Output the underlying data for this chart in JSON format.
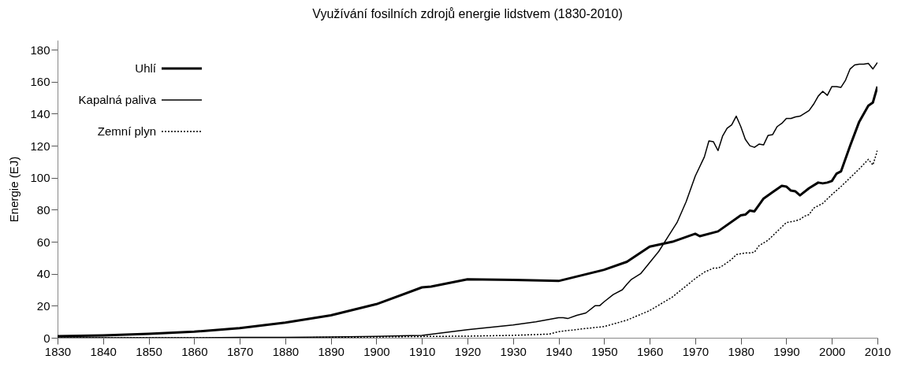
{
  "chart_data": {
    "type": "line",
    "title": "Využívání fosilních zdrojů energie lidstvem (1830-2010)",
    "ylabel": "Energie (EJ)",
    "xlim": [
      1830,
      2010
    ],
    "xticks": [
      1830,
      1840,
      1850,
      1860,
      1870,
      1880,
      1890,
      1900,
      1910,
      1920,
      1930,
      1940,
      1950,
      1960,
      1970,
      1980,
      1990,
      2000,
      2010
    ],
    "ylim": [
      0,
      186
    ],
    "yticks": [
      0,
      20,
      40,
      60,
      80,
      100,
      120,
      140,
      160,
      180
    ],
    "grid": false,
    "legend": "top left",
    "marker": "none",
    "series": [
      {
        "name": "Uhlí",
        "color": "#000000",
        "line_style": "solid",
        "x": [
          1830,
          1840,
          1850,
          1860,
          1870,
          1880,
          1890,
          1900,
          1910,
          1912,
          1920,
          1930,
          1940,
          1950,
          1955,
          1960,
          1965,
          1970,
          1971,
          1975,
          1980,
          1981,
          1982,
          1983,
          1985,
          1987,
          1989,
          1990,
          1991,
          1992,
          1993,
          1995,
          1997,
          1998,
          1999,
          2000,
          2001,
          2002,
          2004,
          2006,
          2008,
          2009,
          2010
        ],
        "values": [
          1,
          1.5,
          2.5,
          3.8,
          6,
          9.5,
          14,
          21,
          31.5,
          32,
          36.5,
          36.2,
          35.5,
          42.5,
          47.5,
          57,
          60,
          65,
          63.5,
          66.5,
          76.5,
          77,
          79.5,
          79,
          87,
          91,
          95,
          94.5,
          92,
          91.5,
          89,
          93.5,
          97,
          96.5,
          97,
          98,
          102.5,
          104,
          120,
          135,
          145,
          147,
          157
        ]
      },
      {
        "name": "Kapalná paliva",
        "color": "#000000",
        "line_style": "solid",
        "x": [
          1830,
          1860,
          1870,
          1880,
          1890,
          1900,
          1910,
          1920,
          1930,
          1935,
          1940,
          1941,
          1942,
          1944,
          1946,
          1948,
          1949,
          1950,
          1952,
          1954,
          1955,
          1956,
          1958,
          1960,
          1962,
          1964,
          1966,
          1968,
          1970,
          1972,
          1973,
          1974,
          1975,
          1976,
          1977,
          1978,
          1979,
          1980,
          1981,
          1982,
          1983,
          1984,
          1985,
          1986,
          1987,
          1988,
          1989,
          1990,
          1991,
          1992,
          1993,
          1995,
          1996,
          1997,
          1998,
          1999,
          2000,
          2001,
          2002,
          2003,
          2004,
          2005,
          2006,
          2007,
          2008,
          2009,
          2010
        ],
        "values": [
          0,
          0,
          0.2,
          0.3,
          0.5,
          0.8,
          1.5,
          5,
          8,
          10,
          12.5,
          12.5,
          12,
          14,
          15.5,
          20,
          20,
          22.5,
          27,
          30,
          33.5,
          36.5,
          40,
          47,
          54,
          63,
          72,
          85,
          101,
          113,
          123,
          122.5,
          117,
          126,
          131,
          133,
          138.5,
          132,
          124,
          120,
          119,
          121,
          120.5,
          126.5,
          127,
          132,
          134,
          137,
          137,
          138,
          138.5,
          142,
          146,
          151,
          154,
          151.5,
          157,
          157,
          156.5,
          161,
          168,
          170.5,
          171,
          171,
          171.5,
          168,
          172
        ]
      },
      {
        "name": "Zemní plyn",
        "color": "#000000",
        "line_style": "dotted",
        "x": [
          1830,
          1880,
          1890,
          1900,
          1910,
          1920,
          1930,
          1938,
          1940,
          1945,
          1950,
          1955,
          1960,
          1965,
          1970,
          1972,
          1974,
          1975,
          1976,
          1978,
          1979,
          1980,
          1981,
          1982,
          1983,
          1984,
          1986,
          1988,
          1990,
          1992,
          1993,
          1994,
          1995,
          1996,
          1998,
          2000,
          2002,
          2004,
          2006,
          2008,
          2009,
          2010
        ],
        "values": [
          0,
          0,
          0.3,
          0.5,
          0.8,
          1,
          1.5,
          2.3,
          3.8,
          5.5,
          7,
          11,
          17,
          25.5,
          37,
          41,
          43.5,
          43.5,
          45,
          49,
          52,
          52.5,
          53,
          53,
          53.5,
          57.5,
          61,
          66.5,
          72,
          73,
          74,
          76,
          77,
          81,
          84,
          89.5,
          94.5,
          100,
          105.5,
          111.5,
          108,
          117
        ]
      }
    ]
  }
}
